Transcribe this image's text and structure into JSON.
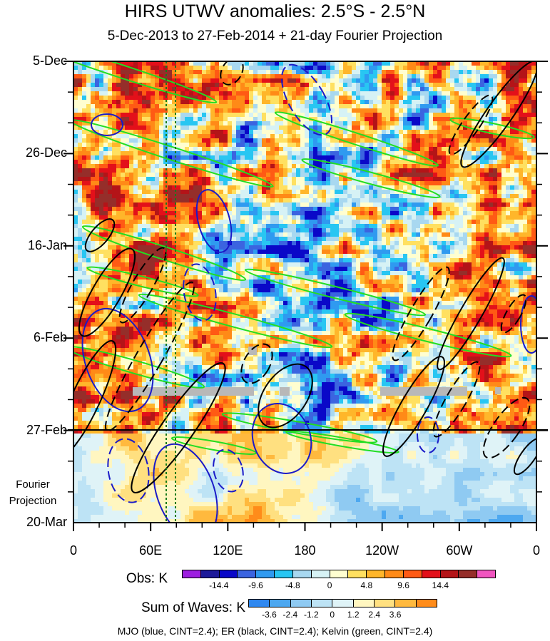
{
  "chart_data": {
    "type": "heatmap",
    "title": "HIRS UTWV anomalies: 2.5°S - 2.5°N",
    "subtitle": "5-Dec-2013 to 27-Feb-2014 + 21-day Fourier Projection",
    "y_tick_labels": [
      "5-Dec",
      "26-Dec",
      "16-Jan",
      "6-Feb",
      "27-Feb",
      "20-Mar"
    ],
    "y_range": [
      "5-Dec",
      "20-Mar"
    ],
    "x_tick_labels": [
      "0",
      "60E",
      "120E",
      "180",
      "120W",
      "60W",
      "0"
    ],
    "x_range_deg": [
      0,
      360
    ],
    "fourier_label": "Fourier\nProjection",
    "obs_end": "27-Feb",
    "obs_legend": {
      "label": "Obs: K",
      "ticks": [
        "-14.4",
        "-9.6",
        "-4.8",
        "0",
        "4.8",
        "9.6",
        "14.4"
      ],
      "colors": [
        "#9d1fe0",
        "#1d1a99",
        "#0a08c8",
        "#3b64e0",
        "#2f9af0",
        "#28c6f2",
        "#a8d8f0",
        "#d6f2f5",
        "#fffed0",
        "#ffe060",
        "#ffb62a",
        "#ff8a17",
        "#ff5a14",
        "#e3101a",
        "#b41418",
        "#952e2a",
        "#f056c0"
      ]
    },
    "waves_legend": {
      "label": "Sum of Waves: K",
      "ticks": [
        "-3.6",
        "-2.4",
        "-1.2",
        "0",
        "1.2",
        "2.4",
        "3.6"
      ],
      "colors": [
        "#2f88f0",
        "#4da8f0",
        "#8fcaf2",
        "#bde3f5",
        "#dff3f7",
        "#fff6c0",
        "#ffe080",
        "#ffb93e",
        "#ff8c1a"
      ]
    },
    "contour_note": "MJO (blue, CINT=2.4); ER (black, CINT=2.4); Kelvin (green, CINT=2.4)",
    "series": [
      {
        "name": "MJO",
        "color": "#1a1ac8"
      },
      {
        "name": "ER",
        "color": "#000000"
      },
      {
        "name": "Kelvin",
        "color": "#22dd22"
      }
    ],
    "grid": false
  }
}
